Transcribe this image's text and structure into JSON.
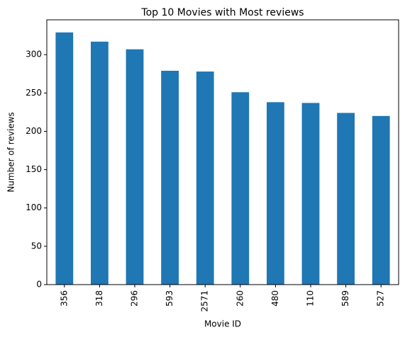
{
  "chart_data": {
    "type": "bar",
    "title": "Top 10 Movies with Most reviews",
    "x_label": "Movie ID",
    "y_label": "Number of reviews",
    "categories": [
      "356",
      "318",
      "296",
      "593",
      "2571",
      "260",
      "480",
      "110",
      "589",
      "527"
    ],
    "values": [
      329,
      317,
      307,
      279,
      278,
      251,
      238,
      237,
      224,
      220
    ],
    "color": "#1f77b4",
    "ylim": [
      0,
      345.45
    ],
    "yticks": [
      0,
      50,
      100,
      150,
      200,
      250,
      300
    ],
    "grid": false
  }
}
